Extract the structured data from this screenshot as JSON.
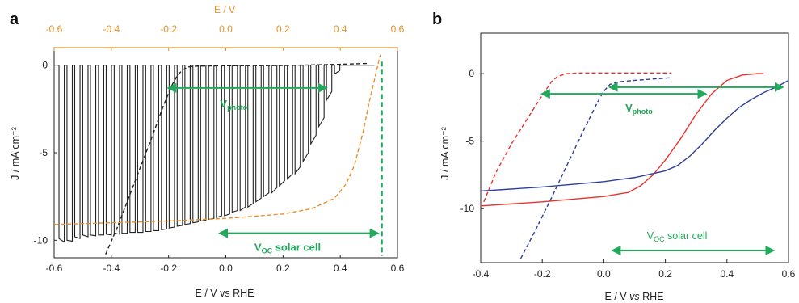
{
  "colors": {
    "black": "#222222",
    "orange": "#e8902a",
    "red": "#e8322f",
    "blue": "#2e3f9a",
    "green": "#22a85a"
  },
  "panel_a": {
    "letter": "a",
    "xlabel": "E / V vs RHE",
    "ylabel": "J / mA cm⁻²",
    "top_xlabel": "E / V",
    "annotations": {
      "vphoto_main": "V",
      "vphoto_sub": "photo",
      "voc_main": "V",
      "voc_sub": "OC",
      "voc_tail": " solar cell"
    }
  },
  "panel_b": {
    "letter": "b",
    "xlabel_prefix": "E / V ",
    "xlabel_italic": "vs",
    "xlabel_suffix": " RHE",
    "ylabel": "J / mA cm⁻²",
    "annotations": {
      "vphoto_main": "V",
      "vphoto_sub": "photo",
      "voc_main": "V",
      "voc_sub": "OC",
      "voc_tail": " solar cell"
    }
  },
  "chart_data": [
    {
      "panel": "a",
      "type": "line",
      "xlabel": "E / V vs RHE",
      "ylabel": "J / mA cm⁻²",
      "xlim": [
        -0.6,
        0.6
      ],
      "ylim": [
        -11,
        1
      ],
      "x_ticks": [
        -0.6,
        -0.4,
        -0.2,
        0.0,
        0.2,
        0.4,
        0.6
      ],
      "x_tick_labels": [
        "-0.6",
        "-0.4",
        "-0.2",
        "0.0",
        "0.2",
        "0.4",
        "0.6"
      ],
      "y_ticks": [
        0,
        -5,
        -10
      ],
      "y_tick_labels": [
        "0",
        "-5",
        "-10"
      ],
      "top_axis": {
        "label": "E / V",
        "xlim": [
          -0.6,
          0.6
        ],
        "ticks": [
          -0.6,
          -0.4,
          -0.2,
          0.0,
          0.2,
          0.4,
          0.6
        ],
        "tick_labels": [
          "-0.6",
          "-0.4",
          "-0.2",
          "0.0",
          "0.2",
          "0.4",
          "0.6"
        ]
      },
      "series": [
        {
          "style": "chopped-light-solid",
          "color": "#222222",
          "dark_current": 0,
          "pulse_on": [
            -0.583,
            -0.555,
            -0.528,
            -0.5,
            -0.473,
            -0.445,
            -0.418,
            -0.39,
            -0.363,
            -0.335,
            -0.308,
            -0.28,
            -0.253,
            -0.225,
            -0.198,
            -0.17,
            -0.143,
            -0.115,
            -0.088,
            -0.06,
            -0.033,
            -0.005,
            0.022,
            0.05,
            0.077,
            0.105,
            0.132,
            0.16,
            0.187,
            0.215,
            0.242,
            0.27,
            0.297,
            0.325,
            0.352,
            0.38
          ],
          "photocurrent_start": [
            -9.9,
            -10.0,
            -9.8,
            -9.7,
            -9.7,
            -9.7,
            -9.65,
            -9.6,
            -9.6,
            -9.55,
            -9.55,
            -9.5,
            -9.45,
            -9.4,
            -9.3,
            -9.2,
            -9.1,
            -9.0,
            -8.9,
            -8.8,
            -8.7,
            -8.6,
            -8.4,
            -8.3,
            -8.1,
            -7.8,
            -7.5,
            -7.3,
            -6.9,
            -6.5,
            -6.2,
            -5.5,
            -4.5,
            -3.5,
            -2.0,
            -0.5
          ],
          "photocurrent_end": [
            -10.1,
            -10.05,
            -9.9,
            -9.8,
            -9.75,
            -9.7,
            -9.7,
            -9.65,
            -9.6,
            -9.55,
            -9.55,
            -9.5,
            -9.45,
            -9.35,
            -9.25,
            -9.15,
            -9.05,
            -8.95,
            -8.85,
            -8.75,
            -8.6,
            -8.5,
            -8.3,
            -8.1,
            -7.9,
            -7.6,
            -7.3,
            -7.0,
            -6.6,
            -6.2,
            -5.8,
            -5.0,
            -4.0,
            -3.0,
            -1.5,
            -0.3
          ]
        },
        {
          "style": "dashed",
          "color": "#222222",
          "x": [
            -0.42,
            -0.38,
            -0.34,
            -0.3,
            -0.26,
            -0.22,
            -0.19,
            -0.17,
            -0.15,
            -0.13,
            -0.1,
            0.0,
            0.2,
            0.4,
            0.5
          ],
          "y": [
            -10.8,
            -9.3,
            -7.6,
            -5.9,
            -4.2,
            -2.4,
            -1.2,
            -0.6,
            -0.25,
            -0.1,
            -0.05,
            -0.03,
            -0.02,
            0.05,
            0.1
          ]
        },
        {
          "style": "dashed",
          "color": "#e8902a",
          "x": [
            -0.6,
            -0.4,
            -0.2,
            0.0,
            0.2,
            0.3,
            0.38,
            0.42,
            0.45,
            0.48,
            0.5,
            0.52,
            0.54
          ],
          "y": [
            -9.1,
            -9.0,
            -8.9,
            -8.75,
            -8.5,
            -8.2,
            -7.6,
            -6.8,
            -5.7,
            -3.8,
            -2.2,
            -0.8,
            0.6
          ]
        }
      ],
      "annotations": [
        {
          "text": "Vphoto",
          "arrow_x": [
            -0.2,
            0.35
          ],
          "y": -1.3
        },
        {
          "text": "VOC solar cell",
          "arrow_x": [
            -0.02,
            0.53
          ],
          "y": -9.6
        },
        {
          "type": "vline",
          "x": 0.545,
          "style": "dashed",
          "color": "#22a85a"
        }
      ]
    },
    {
      "panel": "b",
      "type": "line",
      "xlabel": "E / V vs RHE",
      "ylabel": "J / mA cm⁻²",
      "xlim": [
        -0.4,
        0.6
      ],
      "ylim": [
        -14,
        3
      ],
      "x_ticks": [
        -0.4,
        -0.2,
        0.0,
        0.2,
        0.4,
        0.6
      ],
      "x_tick_labels": [
        "-0.4",
        "-0.2",
        "0.0",
        "0.2",
        "0.4",
        "0.6"
      ],
      "y_ticks": [
        0,
        -5,
        -10
      ],
      "y_tick_labels": [
        "0",
        "-5",
        "-10"
      ],
      "series": [
        {
          "style": "dashed",
          "color": "#e8322f",
          "x": [
            -0.39,
            -0.35,
            -0.3,
            -0.25,
            -0.2,
            -0.17,
            -0.15,
            -0.12,
            -0.08,
            0.0,
            0.1,
            0.22
          ],
          "y": [
            -9.5,
            -7.3,
            -5.2,
            -3.4,
            -1.6,
            -0.6,
            -0.2,
            0.0,
            0.05,
            0.05,
            0.05,
            0.05
          ]
        },
        {
          "style": "dashed",
          "color": "#2e3f9a",
          "x": [
            -0.27,
            -0.22,
            -0.17,
            -0.12,
            -0.07,
            -0.02,
            0.0,
            0.02,
            0.05,
            0.1,
            0.22
          ],
          "y": [
            -13.7,
            -11.5,
            -9.2,
            -6.8,
            -4.4,
            -2.1,
            -1.3,
            -0.8,
            -0.6,
            -0.5,
            -0.3
          ]
        },
        {
          "style": "solid",
          "color": "#e8322f",
          "x": [
            -0.4,
            -0.2,
            0.0,
            0.08,
            0.12,
            0.16,
            0.2,
            0.25,
            0.3,
            0.35,
            0.4,
            0.45,
            0.5,
            0.52
          ],
          "y": [
            -9.8,
            -9.5,
            -9.1,
            -8.8,
            -8.3,
            -7.5,
            -6.4,
            -4.8,
            -3.0,
            -1.5,
            -0.5,
            -0.1,
            0.0,
            0.0
          ]
        },
        {
          "style": "solid",
          "color": "#2e3f9a",
          "x": [
            -0.4,
            -0.2,
            0.0,
            0.1,
            0.2,
            0.24,
            0.28,
            0.32,
            0.36,
            0.4,
            0.44,
            0.48,
            0.52,
            0.56,
            0.6
          ],
          "y": [
            -8.7,
            -8.4,
            -8.0,
            -7.7,
            -7.2,
            -6.8,
            -6.1,
            -5.2,
            -4.2,
            -3.3,
            -2.5,
            -1.9,
            -1.4,
            -1.0,
            -0.5
          ]
        }
      ],
      "annotations": [
        {
          "text": "Vphoto",
          "arrow_x": [
            -0.2,
            0.33
          ],
          "y": -1.5
        },
        {
          "type": "arrow",
          "arrow_x": [
            0.02,
            0.58
          ],
          "y": -1.0
        },
        {
          "text": "VOC solar cell",
          "arrow_x": [
            0.03,
            0.55
          ],
          "y": -12.5
        }
      ]
    }
  ]
}
